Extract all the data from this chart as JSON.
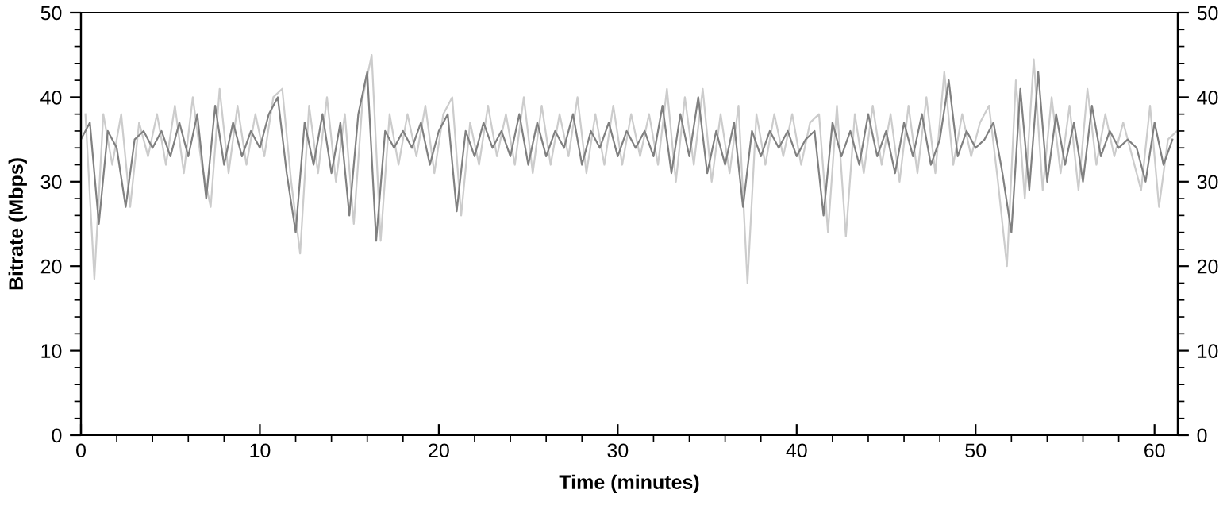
{
  "chart_data": {
    "type": "line",
    "xlabel": "Time (minutes)",
    "ylabel": "Bitrate (Mbps)",
    "xlim": [
      0,
      61.3
    ],
    "ylim": [
      0,
      50
    ],
    "y2lim": [
      0,
      50
    ],
    "xticks": [
      0,
      {
        "value": 2,
        "label": null
      },
      {
        "value": 4,
        "label": null
      },
      {
        "value": 6,
        "label": null
      },
      {
        "value": 8,
        "label": null
      },
      10,
      {
        "value": 12,
        "label": null
      },
      {
        "value": 14,
        "label": null
      },
      {
        "value": 16,
        "label": null
      },
      {
        "value": 18,
        "label": null
      },
      20,
      {
        "value": 22,
        "label": null
      },
      {
        "value": 24,
        "label": null
      },
      {
        "value": 26,
        "label": null
      },
      {
        "value": 28,
        "label": null
      },
      30,
      {
        "value": 32,
        "label": null
      },
      {
        "value": 34,
        "label": null
      },
      {
        "value": 36,
        "label": null
      },
      {
        "value": 38,
        "label": null
      },
      40,
      {
        "value": 42,
        "label": null
      },
      {
        "value": 44,
        "label": null
      },
      {
        "value": 46,
        "label": null
      },
      {
        "value": 48,
        "label": null
      },
      50,
      {
        "value": 52,
        "label": null
      },
      {
        "value": 54,
        "label": null
      },
      {
        "value": 56,
        "label": null
      },
      {
        "value": 58,
        "label": null
      },
      60
    ],
    "yticks": [
      0,
      {
        "value": 2,
        "label": null
      },
      {
        "value": 4,
        "label": null
      },
      {
        "value": 6,
        "label": null
      },
      {
        "value": 8,
        "label": null
      },
      10,
      {
        "value": 12,
        "label": null
      },
      {
        "value": 14,
        "label": null
      },
      {
        "value": 16,
        "label": null
      },
      {
        "value": 18,
        "label": null
      },
      20,
      {
        "value": 22,
        "label": null
      },
      {
        "value": 24,
        "label": null
      },
      {
        "value": 26,
        "label": null
      },
      {
        "value": 28,
        "label": null
      },
      30,
      {
        "value": 32,
        "label": null
      },
      {
        "value": 34,
        "label": null
      },
      {
        "value": 36,
        "label": null
      },
      {
        "value": 38,
        "label": null
      },
      40,
      {
        "value": 42,
        "label": null
      },
      {
        "value": 44,
        "label": null
      },
      {
        "value": 46,
        "label": null
      },
      {
        "value": 48,
        "label": null
      },
      50
    ],
    "y2ticks": [
      0,
      {
        "value": 2,
        "label": null
      },
      {
        "value": 4,
        "label": null
      },
      {
        "value": 6,
        "label": null
      },
      {
        "value": 8,
        "label": null
      },
      10,
      {
        "value": 12,
        "label": null
      },
      {
        "value": 14,
        "label": null
      },
      {
        "value": 16,
        "label": null
      },
      {
        "value": 18,
        "label": null
      },
      20,
      {
        "value": 22,
        "label": null
      },
      {
        "value": 24,
        "label": null
      },
      {
        "value": 26,
        "label": null
      },
      {
        "value": 28,
        "label": null
      },
      30,
      {
        "value": 32,
        "label": null
      },
      {
        "value": 34,
        "label": null
      },
      {
        "value": 36,
        "label": null
      },
      {
        "value": 38,
        "label": null
      },
      40,
      {
        "value": 42,
        "label": null
      },
      {
        "value": 44,
        "label": null
      },
      {
        "value": 46,
        "label": null
      },
      {
        "value": 48,
        "label": null
      },
      50
    ],
    "grid": false,
    "marker": "none",
    "line_style": "solid",
    "series": [
      {
        "color": "#cccccc",
        "x": [
          0.25,
          0.75,
          1.25,
          1.75,
          2.25,
          2.75,
          3.25,
          3.75,
          4.25,
          4.75,
          5.25,
          5.75,
          6.25,
          6.75,
          7.25,
          7.75,
          8.25,
          8.75,
          9.25,
          9.75,
          10.25,
          10.75,
          11.25,
          11.75,
          12.25,
          12.75,
          13.25,
          13.75,
          14.25,
          14.75,
          15.25,
          15.75,
          16.25,
          16.75,
          17.25,
          17.75,
          18.25,
          18.75,
          19.25,
          19.75,
          20.25,
          20.75,
          21.25,
          21.75,
          22.25,
          22.75,
          23.25,
          23.75,
          24.25,
          24.75,
          25.25,
          25.75,
          26.25,
          26.75,
          27.25,
          27.75,
          28.25,
          28.75,
          29.25,
          29.75,
          30.25,
          30.75,
          31.25,
          31.75,
          32.25,
          32.75,
          33.25,
          33.75,
          34.25,
          34.75,
          35.25,
          35.75,
          36.25,
          36.75,
          37.25,
          37.75,
          38.25,
          38.75,
          39.25,
          39.75,
          40.25,
          40.75,
          41.25,
          41.75,
          42.25,
          42.75,
          43.25,
          43.75,
          44.25,
          44.75,
          45.25,
          45.75,
          46.25,
          46.75,
          47.25,
          47.75,
          48.25,
          48.75,
          49.25,
          49.75,
          50.25,
          50.75,
          51.25,
          51.75,
          52.25,
          52.75,
          53.25,
          53.75,
          54.25,
          54.75,
          55.25,
          55.75,
          56.25,
          56.75,
          57.25,
          57.75,
          58.25,
          58.75,
          59.25,
          59.75,
          60.25,
          60.75,
          61.25
        ],
        "values": [
          38,
          18.5,
          38,
          32,
          38,
          27,
          37,
          33,
          38,
          32,
          39,
          31,
          40,
          32,
          27,
          41,
          31,
          39,
          32,
          38,
          33,
          40,
          41,
          30,
          21.5,
          39,
          31,
          40,
          30,
          38,
          25,
          40,
          45,
          23,
          38,
          32,
          38,
          33,
          39,
          31,
          38,
          40,
          26,
          37,
          32,
          39,
          33,
          38,
          32,
          40,
          31,
          39,
          32,
          38,
          33,
          40,
          31,
          38,
          32,
          39,
          32,
          38,
          33,
          38,
          32,
          41,
          30,
          40,
          32,
          41,
          30,
          38,
          31,
          39,
          18,
          38,
          32,
          38,
          33,
          38,
          32,
          37,
          38,
          24,
          39,
          23.5,
          38,
          31,
          39,
          32,
          38,
          30,
          39,
          31,
          40,
          31,
          43,
          32,
          38,
          33,
          37,
          39,
          30,
          20,
          42,
          28,
          44.5,
          29,
          40,
          31,
          39,
          29,
          41,
          32,
          38,
          33,
          37,
          33,
          29,
          39,
          27,
          35,
          36
        ]
      },
      {
        "color": "#808080",
        "x": [
          0,
          0.5,
          1,
          1.5,
          2,
          2.5,
          3,
          3.5,
          4,
          4.5,
          5,
          5.5,
          6,
          6.5,
          7,
          7.5,
          8,
          8.5,
          9,
          9.5,
          10,
          10.5,
          11,
          11.5,
          12,
          12.5,
          13,
          13.5,
          14,
          14.5,
          15,
          15.5,
          16,
          16.5,
          17,
          17.5,
          18,
          18.5,
          19,
          19.5,
          20,
          20.5,
          21,
          21.5,
          22,
          22.5,
          23,
          23.5,
          24,
          24.5,
          25,
          25.5,
          26,
          26.5,
          27,
          27.5,
          28,
          28.5,
          29,
          29.5,
          30,
          30.5,
          31,
          31.5,
          32,
          32.5,
          33,
          33.5,
          34,
          34.5,
          35,
          35.5,
          36,
          36.5,
          37,
          37.5,
          38,
          38.5,
          39,
          39.5,
          40,
          40.5,
          41,
          41.5,
          42,
          42.5,
          43,
          43.5,
          44,
          44.5,
          45,
          45.5,
          46,
          46.5,
          47,
          47.5,
          48,
          48.5,
          49,
          49.5,
          50,
          50.5,
          51,
          51.5,
          52,
          52.5,
          53,
          53.5,
          54,
          54.5,
          55,
          55.5,
          56,
          56.5,
          57,
          57.5,
          58,
          58.5,
          59,
          59.5,
          60,
          60.5,
          61
        ],
        "values": [
          35,
          37,
          25,
          36,
          34,
          27,
          35,
          36,
          34,
          36,
          33,
          37,
          33,
          38,
          28,
          39,
          32,
          37,
          33,
          36,
          34,
          38,
          40,
          31,
          24,
          37,
          32,
          38,
          31,
          37,
          26,
          38,
          43,
          23,
          36,
          34,
          36,
          34,
          37,
          32,
          36,
          38,
          26.5,
          36,
          33,
          37,
          34,
          36,
          33,
          38,
          32,
          37,
          33,
          36,
          34,
          38,
          32,
          36,
          34,
          37,
          33,
          36,
          34,
          36,
          33,
          39,
          31,
          38,
          33,
          40,
          31,
          36,
          32,
          37,
          27,
          36,
          33,
          36,
          34,
          36,
          33,
          35,
          36,
          26,
          37,
          33,
          36,
          32,
          38,
          33,
          36,
          31,
          37,
          33,
          38,
          32,
          35,
          42,
          33,
          36,
          34,
          35,
          37,
          31,
          24,
          41,
          29,
          43,
          30,
          38,
          32,
          37,
          30,
          39,
          33,
          36,
          34,
          35,
          34,
          30,
          37,
          32,
          35
        ]
      }
    ]
  }
}
